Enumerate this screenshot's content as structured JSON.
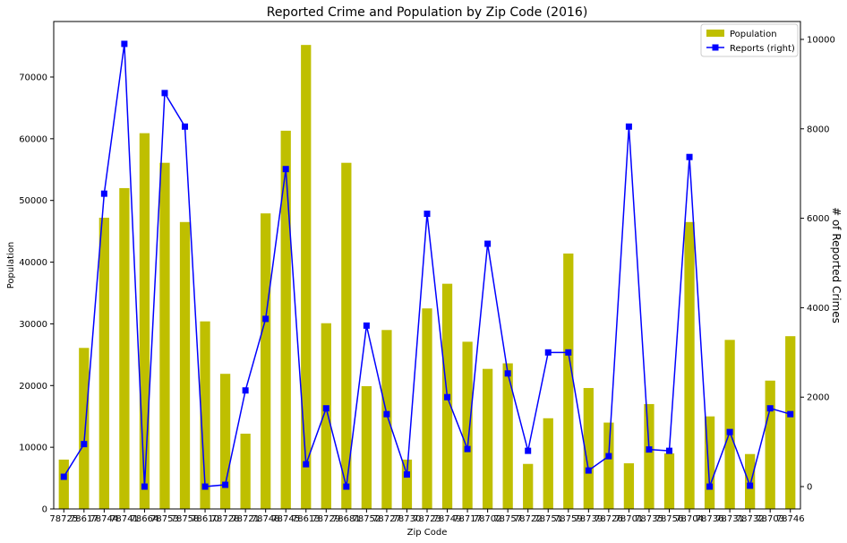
{
  "chart_data": {
    "type": "bar",
    "title": "Reported Crime and Population by Zip Code (2016)",
    "xlabel": "Zip Code",
    "ylabel": "Population",
    "ylabel_right": "# of Reported Crimes",
    "ylim": [
      0,
      79000
    ],
    "ylim_right": [
      -500,
      10400
    ],
    "yticks": [
      0,
      10000,
      20000,
      30000,
      40000,
      50000,
      60000,
      70000
    ],
    "yticks_right": [
      0,
      2000,
      4000,
      6000,
      8000,
      10000
    ],
    "grid": false,
    "legend_position": "top-right",
    "categories": [
      "78725",
      "78617",
      "78744",
      "78741",
      "78664",
      "78753",
      "78758",
      "78610",
      "78728",
      "78721",
      "78748",
      "78745",
      "78613",
      "78729",
      "78681",
      "78752",
      "78727",
      "78730",
      "78723",
      "78749",
      "78717",
      "78702",
      "78757",
      "78722",
      "78751",
      "78759",
      "78739",
      "78726",
      "78701",
      "78735",
      "78756",
      "78704",
      "78736",
      "78731",
      "78732",
      "78703",
      "78746"
    ],
    "series": [
      {
        "name": "Population",
        "kind": "bar",
        "color": "#bfbf00",
        "values": [
          8000,
          26100,
          47200,
          52000,
          60900,
          56100,
          46500,
          30400,
          21900,
          12200,
          47900,
          61300,
          75200,
          30100,
          56100,
          19900,
          29000,
          8000,
          32500,
          36500,
          27100,
          22700,
          23600,
          7300,
          14700,
          41400,
          19600,
          14000,
          7400,
          17000,
          9000,
          46500,
          15000,
          27400,
          8900,
          20800,
          28000
        ]
      },
      {
        "name": "Reports (right)",
        "kind": "line",
        "axis": "right",
        "color": "#0000ff",
        "values": [
          220,
          950,
          6550,
          9900,
          0,
          8800,
          8050,
          0,
          40,
          2150,
          3750,
          7100,
          500,
          1750,
          0,
          3600,
          1620,
          270,
          6100,
          2000,
          840,
          5430,
          2530,
          800,
          3000,
          3000,
          360,
          680,
          8050,
          830,
          800,
          7370,
          0,
          1220,
          20,
          1750,
          1620
        ]
      }
    ]
  }
}
